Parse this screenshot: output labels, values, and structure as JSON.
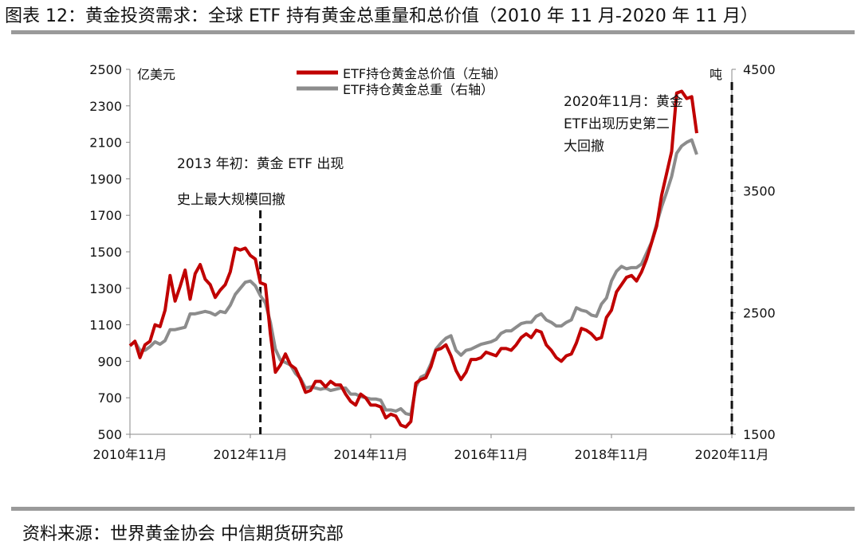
{
  "title": "图表 12：黄金投资需求：全球 ETF 持有黄金总重量和总价值（2010 年 11 月-2020 年 11 月）",
  "source": "资料来源：世界黄金协会 中信期货研究部",
  "chart_data": {
    "type": "line",
    "left_axis_unit": "亿美元",
    "right_axis_unit": "吨",
    "ylim_left": [
      500,
      2500
    ],
    "ylim_right": [
      1500,
      4500
    ],
    "yticks_left": [
      500,
      700,
      900,
      1100,
      1300,
      1500,
      1700,
      1900,
      2100,
      2300,
      2500
    ],
    "yticks_right": [
      1500,
      2500,
      3500,
      4500
    ],
    "x_range": [
      "2010-11",
      "2020-11"
    ],
    "xtick_labels": [
      "2010年11月",
      "2012年11月",
      "2014年11月",
      "2016年11月",
      "2018年11月",
      "2020年11月"
    ],
    "series": [
      {
        "name": "ETF持仓黄金总价值（左轴）",
        "axis": "left",
        "color": "#c00000",
        "values": [
          [
            0,
            985
          ],
          [
            1,
            1010
          ],
          [
            2,
            920
          ],
          [
            3,
            990
          ],
          [
            4,
            1010
          ],
          [
            5,
            1100
          ],
          [
            6,
            1090
          ],
          [
            7,
            1180
          ],
          [
            8,
            1370
          ],
          [
            9,
            1230
          ],
          [
            10,
            1310
          ],
          [
            11,
            1400
          ],
          [
            12,
            1240
          ],
          [
            13,
            1380
          ],
          [
            14,
            1430
          ],
          [
            15,
            1350
          ],
          [
            16,
            1320
          ],
          [
            17,
            1250
          ],
          [
            18,
            1290
          ],
          [
            19,
            1320
          ],
          [
            20,
            1390
          ],
          [
            21,
            1520
          ],
          [
            22,
            1510
          ],
          [
            23,
            1520
          ],
          [
            24,
            1480
          ],
          [
            25,
            1460
          ],
          [
            26,
            1330
          ],
          [
            27,
            1320
          ],
          [
            28,
            1050
          ],
          [
            29,
            840
          ],
          [
            30,
            880
          ],
          [
            31,
            940
          ],
          [
            32,
            880
          ],
          [
            33,
            860
          ],
          [
            34,
            800
          ],
          [
            35,
            730
          ],
          [
            36,
            740
          ],
          [
            37,
            790
          ],
          [
            38,
            790
          ],
          [
            39,
            760
          ],
          [
            40,
            790
          ],
          [
            41,
            770
          ],
          [
            42,
            770
          ],
          [
            43,
            720
          ],
          [
            44,
            680
          ],
          [
            45,
            660
          ],
          [
            46,
            720
          ],
          [
            47,
            700
          ],
          [
            48,
            660
          ],
          [
            49,
            660
          ],
          [
            50,
            650
          ],
          [
            51,
            590
          ],
          [
            52,
            610
          ],
          [
            53,
            600
          ],
          [
            54,
            550
          ],
          [
            55,
            540
          ],
          [
            56,
            570
          ],
          [
            57,
            780
          ],
          [
            58,
            800
          ],
          [
            59,
            810
          ],
          [
            60,
            870
          ],
          [
            61,
            960
          ],
          [
            62,
            970
          ],
          [
            63,
            990
          ],
          [
            64,
            930
          ],
          [
            65,
            850
          ],
          [
            66,
            800
          ],
          [
            67,
            840
          ],
          [
            68,
            910
          ],
          [
            69,
            910
          ],
          [
            70,
            920
          ],
          [
            71,
            950
          ],
          [
            72,
            940
          ],
          [
            73,
            930
          ],
          [
            74,
            970
          ],
          [
            75,
            970
          ],
          [
            76,
            960
          ],
          [
            77,
            990
          ],
          [
            78,
            1030
          ],
          [
            79,
            1050
          ],
          [
            80,
            1030
          ],
          [
            81,
            1070
          ],
          [
            82,
            1060
          ],
          [
            83,
            990
          ],
          [
            84,
            960
          ],
          [
            85,
            920
          ],
          [
            86,
            900
          ],
          [
            87,
            930
          ],
          [
            88,
            940
          ],
          [
            89,
            1000
          ],
          [
            90,
            1080
          ],
          [
            91,
            1070
          ],
          [
            92,
            1050
          ],
          [
            93,
            1020
          ],
          [
            94,
            1030
          ],
          [
            95,
            1140
          ],
          [
            96,
            1180
          ],
          [
            97,
            1280
          ],
          [
            98,
            1320
          ],
          [
            99,
            1360
          ],
          [
            100,
            1370
          ],
          [
            101,
            1340
          ],
          [
            102,
            1390
          ],
          [
            103,
            1460
          ],
          [
            104,
            1550
          ],
          [
            105,
            1640
          ],
          [
            106,
            1810
          ],
          [
            107,
            1930
          ],
          [
            108,
            2050
          ],
          [
            109,
            2370
          ],
          [
            110,
            2380
          ],
          [
            111,
            2340
          ],
          [
            112,
            2350
          ],
          [
            113,
            2150
          ]
        ]
      },
      {
        "name": "ETF持仓黄金总重（右轴）",
        "axis": "right",
        "color": "#8c8c8c",
        "values": [
          [
            0,
            2230
          ],
          [
            1,
            2260
          ],
          [
            2,
            2190
          ],
          [
            3,
            2190
          ],
          [
            4,
            2220
          ],
          [
            5,
            2260
          ],
          [
            6,
            2240
          ],
          [
            7,
            2270
          ],
          [
            8,
            2360
          ],
          [
            9,
            2360
          ],
          [
            10,
            2370
          ],
          [
            11,
            2380
          ],
          [
            12,
            2490
          ],
          [
            13,
            2490
          ],
          [
            14,
            2500
          ],
          [
            15,
            2510
          ],
          [
            16,
            2500
          ],
          [
            17,
            2480
          ],
          [
            18,
            2510
          ],
          [
            19,
            2500
          ],
          [
            20,
            2560
          ],
          [
            21,
            2650
          ],
          [
            22,
            2700
          ],
          [
            23,
            2750
          ],
          [
            24,
            2760
          ],
          [
            25,
            2720
          ],
          [
            26,
            2640
          ],
          [
            27,
            2580
          ],
          [
            28,
            2420
          ],
          [
            29,
            2200
          ],
          [
            30,
            2110
          ],
          [
            31,
            2090
          ],
          [
            32,
            2070
          ],
          [
            33,
            2000
          ],
          [
            34,
            1960
          ],
          [
            35,
            1880
          ],
          [
            36,
            1890
          ],
          [
            37,
            1880
          ],
          [
            38,
            1870
          ],
          [
            39,
            1880
          ],
          [
            40,
            1860
          ],
          [
            41,
            1870
          ],
          [
            42,
            1880
          ],
          [
            43,
            1880
          ],
          [
            44,
            1830
          ],
          [
            45,
            1830
          ],
          [
            46,
            1810
          ],
          [
            47,
            1800
          ],
          [
            48,
            1790
          ],
          [
            49,
            1790
          ],
          [
            50,
            1780
          ],
          [
            51,
            1700
          ],
          [
            52,
            1700
          ],
          [
            53,
            1690
          ],
          [
            54,
            1710
          ],
          [
            55,
            1670
          ],
          [
            56,
            1660
          ],
          [
            57,
            1890
          ],
          [
            58,
            1970
          ],
          [
            59,
            1990
          ],
          [
            60,
            2080
          ],
          [
            61,
            2200
          ],
          [
            62,
            2250
          ],
          [
            63,
            2290
          ],
          [
            64,
            2310
          ],
          [
            65,
            2190
          ],
          [
            66,
            2150
          ],
          [
            67,
            2190
          ],
          [
            68,
            2200
          ],
          [
            69,
            2220
          ],
          [
            70,
            2240
          ],
          [
            71,
            2250
          ],
          [
            72,
            2260
          ],
          [
            73,
            2280
          ],
          [
            74,
            2330
          ],
          [
            75,
            2350
          ],
          [
            76,
            2350
          ],
          [
            77,
            2380
          ],
          [
            78,
            2410
          ],
          [
            79,
            2420
          ],
          [
            80,
            2420
          ],
          [
            81,
            2470
          ],
          [
            82,
            2490
          ],
          [
            83,
            2440
          ],
          [
            84,
            2420
          ],
          [
            85,
            2390
          ],
          [
            86,
            2390
          ],
          [
            87,
            2420
          ],
          [
            88,
            2440
          ],
          [
            89,
            2540
          ],
          [
            90,
            2520
          ],
          [
            91,
            2510
          ],
          [
            92,
            2480
          ],
          [
            93,
            2470
          ],
          [
            94,
            2570
          ],
          [
            95,
            2620
          ],
          [
            96,
            2760
          ],
          [
            97,
            2840
          ],
          [
            98,
            2880
          ],
          [
            99,
            2860
          ],
          [
            100,
            2870
          ],
          [
            101,
            2870
          ],
          [
            102,
            2900
          ],
          [
            103,
            2990
          ],
          [
            104,
            3080
          ],
          [
            105,
            3230
          ],
          [
            106,
            3370
          ],
          [
            107,
            3490
          ],
          [
            108,
            3620
          ],
          [
            109,
            3810
          ],
          [
            110,
            3870
          ],
          [
            111,
            3900
          ],
          [
            112,
            3920
          ],
          [
            113,
            3800
          ]
        ]
      }
    ],
    "annotations": [
      {
        "text": "2013 年初：黄金 ETF 出现",
        "text2": "史上最大规模回撤",
        "x_month": 26
      },
      {
        "text": "2020年11月：黄金",
        "text2": "ETF出现历史第二",
        "text3": "大回撤",
        "x_month": 120
      }
    ]
  }
}
